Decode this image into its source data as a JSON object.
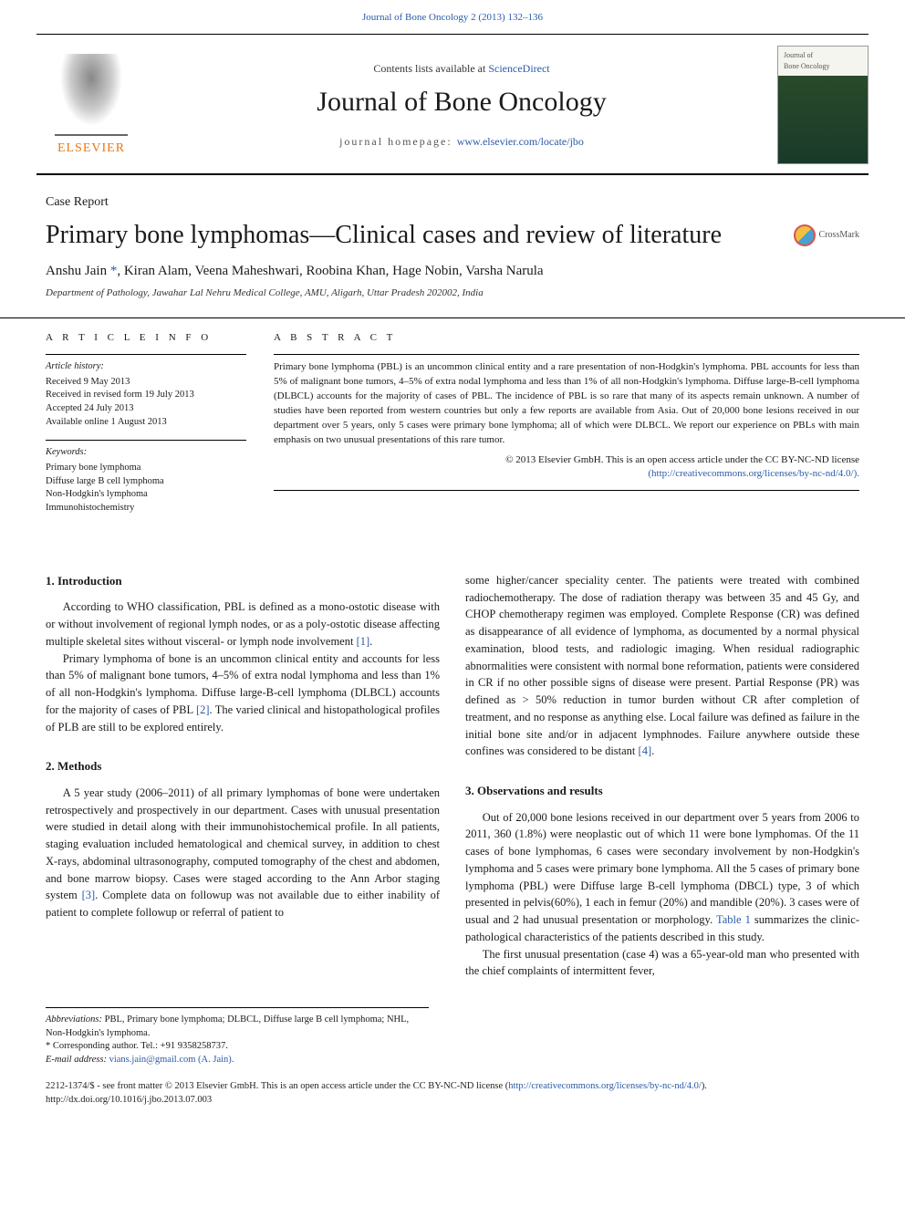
{
  "banner": "Journal of Bone Oncology 2 (2013) 132–136",
  "header": {
    "contents_prefix": "Contents lists available at ",
    "contents_link": "ScienceDirect",
    "journal_name": "Journal of Bone Oncology",
    "homepage_prefix": "journal homepage: ",
    "homepage_link": "www.elsevier.com/locate/jbo",
    "publisher": "ELSEVIER"
  },
  "article_type": "Case Report",
  "title": "Primary bone lymphomas—Clinical cases and review of literature",
  "crossmark": "CrossMark",
  "authors": "Anshu Jain *, Kiran Alam, Veena Maheshwari, Roobina Khan, Hage Nobin, Varsha Narula",
  "affiliation": "Department of Pathology, Jawahar Lal Nehru Medical College, AMU, Aligarh, Uttar Pradesh 202002, India",
  "info": {
    "head": "A R T I C L E   I N F O",
    "history_label": "Article history:",
    "received": "Received 9 May 2013",
    "revised": "Received in revised form 19 July 2013",
    "accepted": "Accepted 24 July 2013",
    "online": "Available online 1 August 2013",
    "keywords_label": "Keywords:",
    "kw1": "Primary bone lymphoma",
    "kw2": "Diffuse large B cell lymphoma",
    "kw3": "Non-Hodgkin's lymphoma",
    "kw4": "Immunohistochemistry"
  },
  "abstract": {
    "head": "A B S T R A C T",
    "text": "Primary bone lymphoma (PBL) is an uncommon clinical entity and a rare presentation of non-Hodgkin's lymphoma. PBL accounts for less than 5% of malignant bone tumors, 4–5% of extra nodal lymphoma and less than 1% of all non-Hodgkin's lymphoma. Diffuse large-B-cell lymphoma (DLBCL) accounts for the majority of cases of PBL. The incidence of PBL is so rare that many of its aspects remain unknown. A number of studies have been reported from western countries but only a few reports are available from Asia. Out of 20,000 bone lesions received in our department over 5 years, only 5 cases were primary bone lymphoma; all of which were DLBCL. We report our experience on PBLs with main emphasis on two unusual presentations of this rare tumor.",
    "copyright_line1": "© 2013 Elsevier GmbH. This is an open access article under the CC BY-NC-ND license",
    "copyright_link": "(http://creativecommons.org/licenses/by-nc-nd/4.0/)."
  },
  "sections": {
    "s1_head": "1.  Introduction",
    "s1_p1": "According to WHO classification, PBL is defined as a mono-ostotic disease with or without involvement of regional lymph nodes, or as a poly-ostotic disease affecting multiple skeletal sites without visceral- or lymph node involvement [1].",
    "s1_p2": "Primary lymphoma of bone is an uncommon clinical entity and accounts for less than 5% of malignant bone tumors, 4–5% of extra nodal lymphoma and less than 1% of all non-Hodgkin's lymphoma. Diffuse large-B-cell lymphoma (DLBCL) accounts for the majority of cases of PBL [2]. The varied clinical and histopathological profiles of PLB are still to be explored entirely.",
    "s2_head": "2.  Methods",
    "s2_p1": "A 5 year study (2006–2011) of all primary lymphomas of bone were undertaken retrospectively and prospectively in our department. Cases with unusual presentation were studied in detail along with their immunohistochemical profile. In all patients, staging evaluation included hematological and chemical survey, in addition to chest X-rays, abdominal ultrasonography, computed tomography of the chest and abdomen, and bone marrow biopsy. Cases were staged according to the Ann Arbor staging system [3]. Complete data on followup was not available due to either inability of patient to complete followup or referral of patient to",
    "col2_cont": "some higher/cancer speciality center. The patients were treated with combined radiochemotherapy. The dose of radiation therapy was between 35 and 45 Gy, and CHOP chemotherapy regimen was employed. Complete Response (CR) was defined as disappearance of all evidence of lymphoma, as documented by a normal physical examination, blood tests, and radiologic imaging. When residual radiographic abnormalities were consistent with normal bone reformation, patients were considered in CR if no other possible signs of disease were present. Partial Response (PR) was defined as > 50% reduction in tumor burden without CR after completion of treatment, and no response as anything else. Local failure was defined as failure in the initial bone site and/or in adjacent lymphnodes. Failure anywhere outside these confines was considered to be distant [4].",
    "s3_head": "3.  Observations and results",
    "s3_p1": "Out of 20,000 bone lesions received in our department over 5 years from 2006 to 2011, 360 (1.8%) were neoplastic out of which 11 were bone lymphomas. Of the 11 cases of bone lymphomas, 6 cases were secondary involvement by non-Hodgkin's lymphoma and 5 cases were primary bone lymphoma. All the 5 cases of primary bone lymphoma (PBL) were Diffuse large B-cell lymphoma (DBCL) type, 3 of which presented in pelvis(60%), 1 each in femur (20%) and mandible (20%). 3 cases were of usual and 2 had unusual presentation or morphology. Table 1 summarizes the clinic-pathological characteristics of the patients described in this study.",
    "s3_p2": "The first unusual presentation (case 4) was a 65-year-old man who presented with the chief complaints of intermittent fever,"
  },
  "footnotes": {
    "abbrev_label": "Abbreviations:",
    "abbrev_text": " PBL, Primary bone lymphoma; DLBCL, Diffuse large B cell lymphoma; NHL, Non-Hodgkin's lymphoma.",
    "corr": "* Corresponding author. Tel.: +91 9358258737.",
    "email_label": "E-mail address: ",
    "email": "vians.jain@gmail.com (A. Jain)."
  },
  "bottom": {
    "line1a": "2212-1374/$ - see front matter © 2013 Elsevier GmbH. This is an open access article under the CC BY-NC-ND license (",
    "line1b": "http://creativecommons.org/licenses/by-nc-nd/4.0/",
    "line1c": ").",
    "doi": "http://dx.doi.org/10.1016/j.jbo.2013.07.003"
  }
}
